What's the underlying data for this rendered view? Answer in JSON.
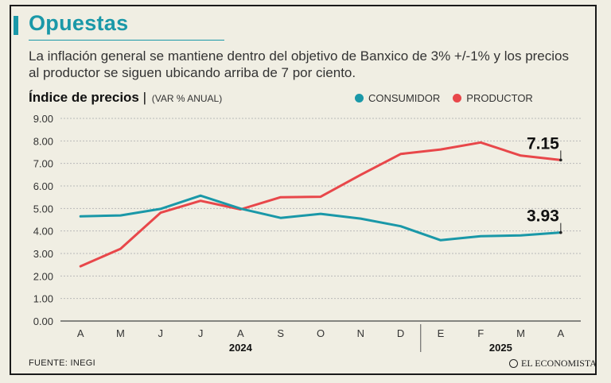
{
  "header": {
    "title": "Opuestas",
    "subtitle": "La inflación general se mantiene dentro del objetivo de Banxico de 3% +/-1% y los precios al productor se siguen ubicando arriba de 7 por ciento."
  },
  "chart_header": {
    "title": "Índice de precios",
    "unit": "(VAR % ANUAL)"
  },
  "legend": [
    {
      "label": "CONSUMIDOR",
      "color": "#1a98a8"
    },
    {
      "label": "PRODUCTOR",
      "color": "#e8474a"
    }
  ],
  "footer": {
    "source": "FUENTE: INEGI",
    "brand": "EL ECONOMISTA"
  },
  "chart_data": {
    "type": "line",
    "title": "Índice de precios",
    "ylabel": "(VAR % ANUAL)",
    "xlabel": "",
    "categories": [
      "A",
      "M",
      "J",
      "J",
      "A",
      "S",
      "O",
      "N",
      "D",
      "E",
      "F",
      "M",
      "A"
    ],
    "year_groups": [
      {
        "label": "2024",
        "from": 0,
        "to": 8
      },
      {
        "label": "2025",
        "from": 9,
        "to": 12
      }
    ],
    "ylim": [
      0,
      9
    ],
    "yticks": [
      "0.00",
      "1.00",
      "2.00",
      "3.00",
      "4.00",
      "5.00",
      "6.00",
      "7.00",
      "8.00",
      "9.00"
    ],
    "grid": true,
    "series": [
      {
        "name": "CONSUMIDOR",
        "color": "#1a98a8",
        "values": [
          4.65,
          4.69,
          4.98,
          5.57,
          4.99,
          4.58,
          4.76,
          4.55,
          4.21,
          3.59,
          3.77,
          3.8,
          3.93
        ]
      },
      {
        "name": "PRODUCTOR",
        "color": "#e8474a",
        "values": [
          2.43,
          3.21,
          4.81,
          5.34,
          4.96,
          5.5,
          5.52,
          6.49,
          7.42,
          7.62,
          7.93,
          7.35,
          7.15
        ]
      }
    ],
    "end_labels": [
      {
        "series": "PRODUCTOR",
        "text": "7.15"
      },
      {
        "series": "CONSUMIDOR",
        "text": "3.93"
      }
    ]
  }
}
